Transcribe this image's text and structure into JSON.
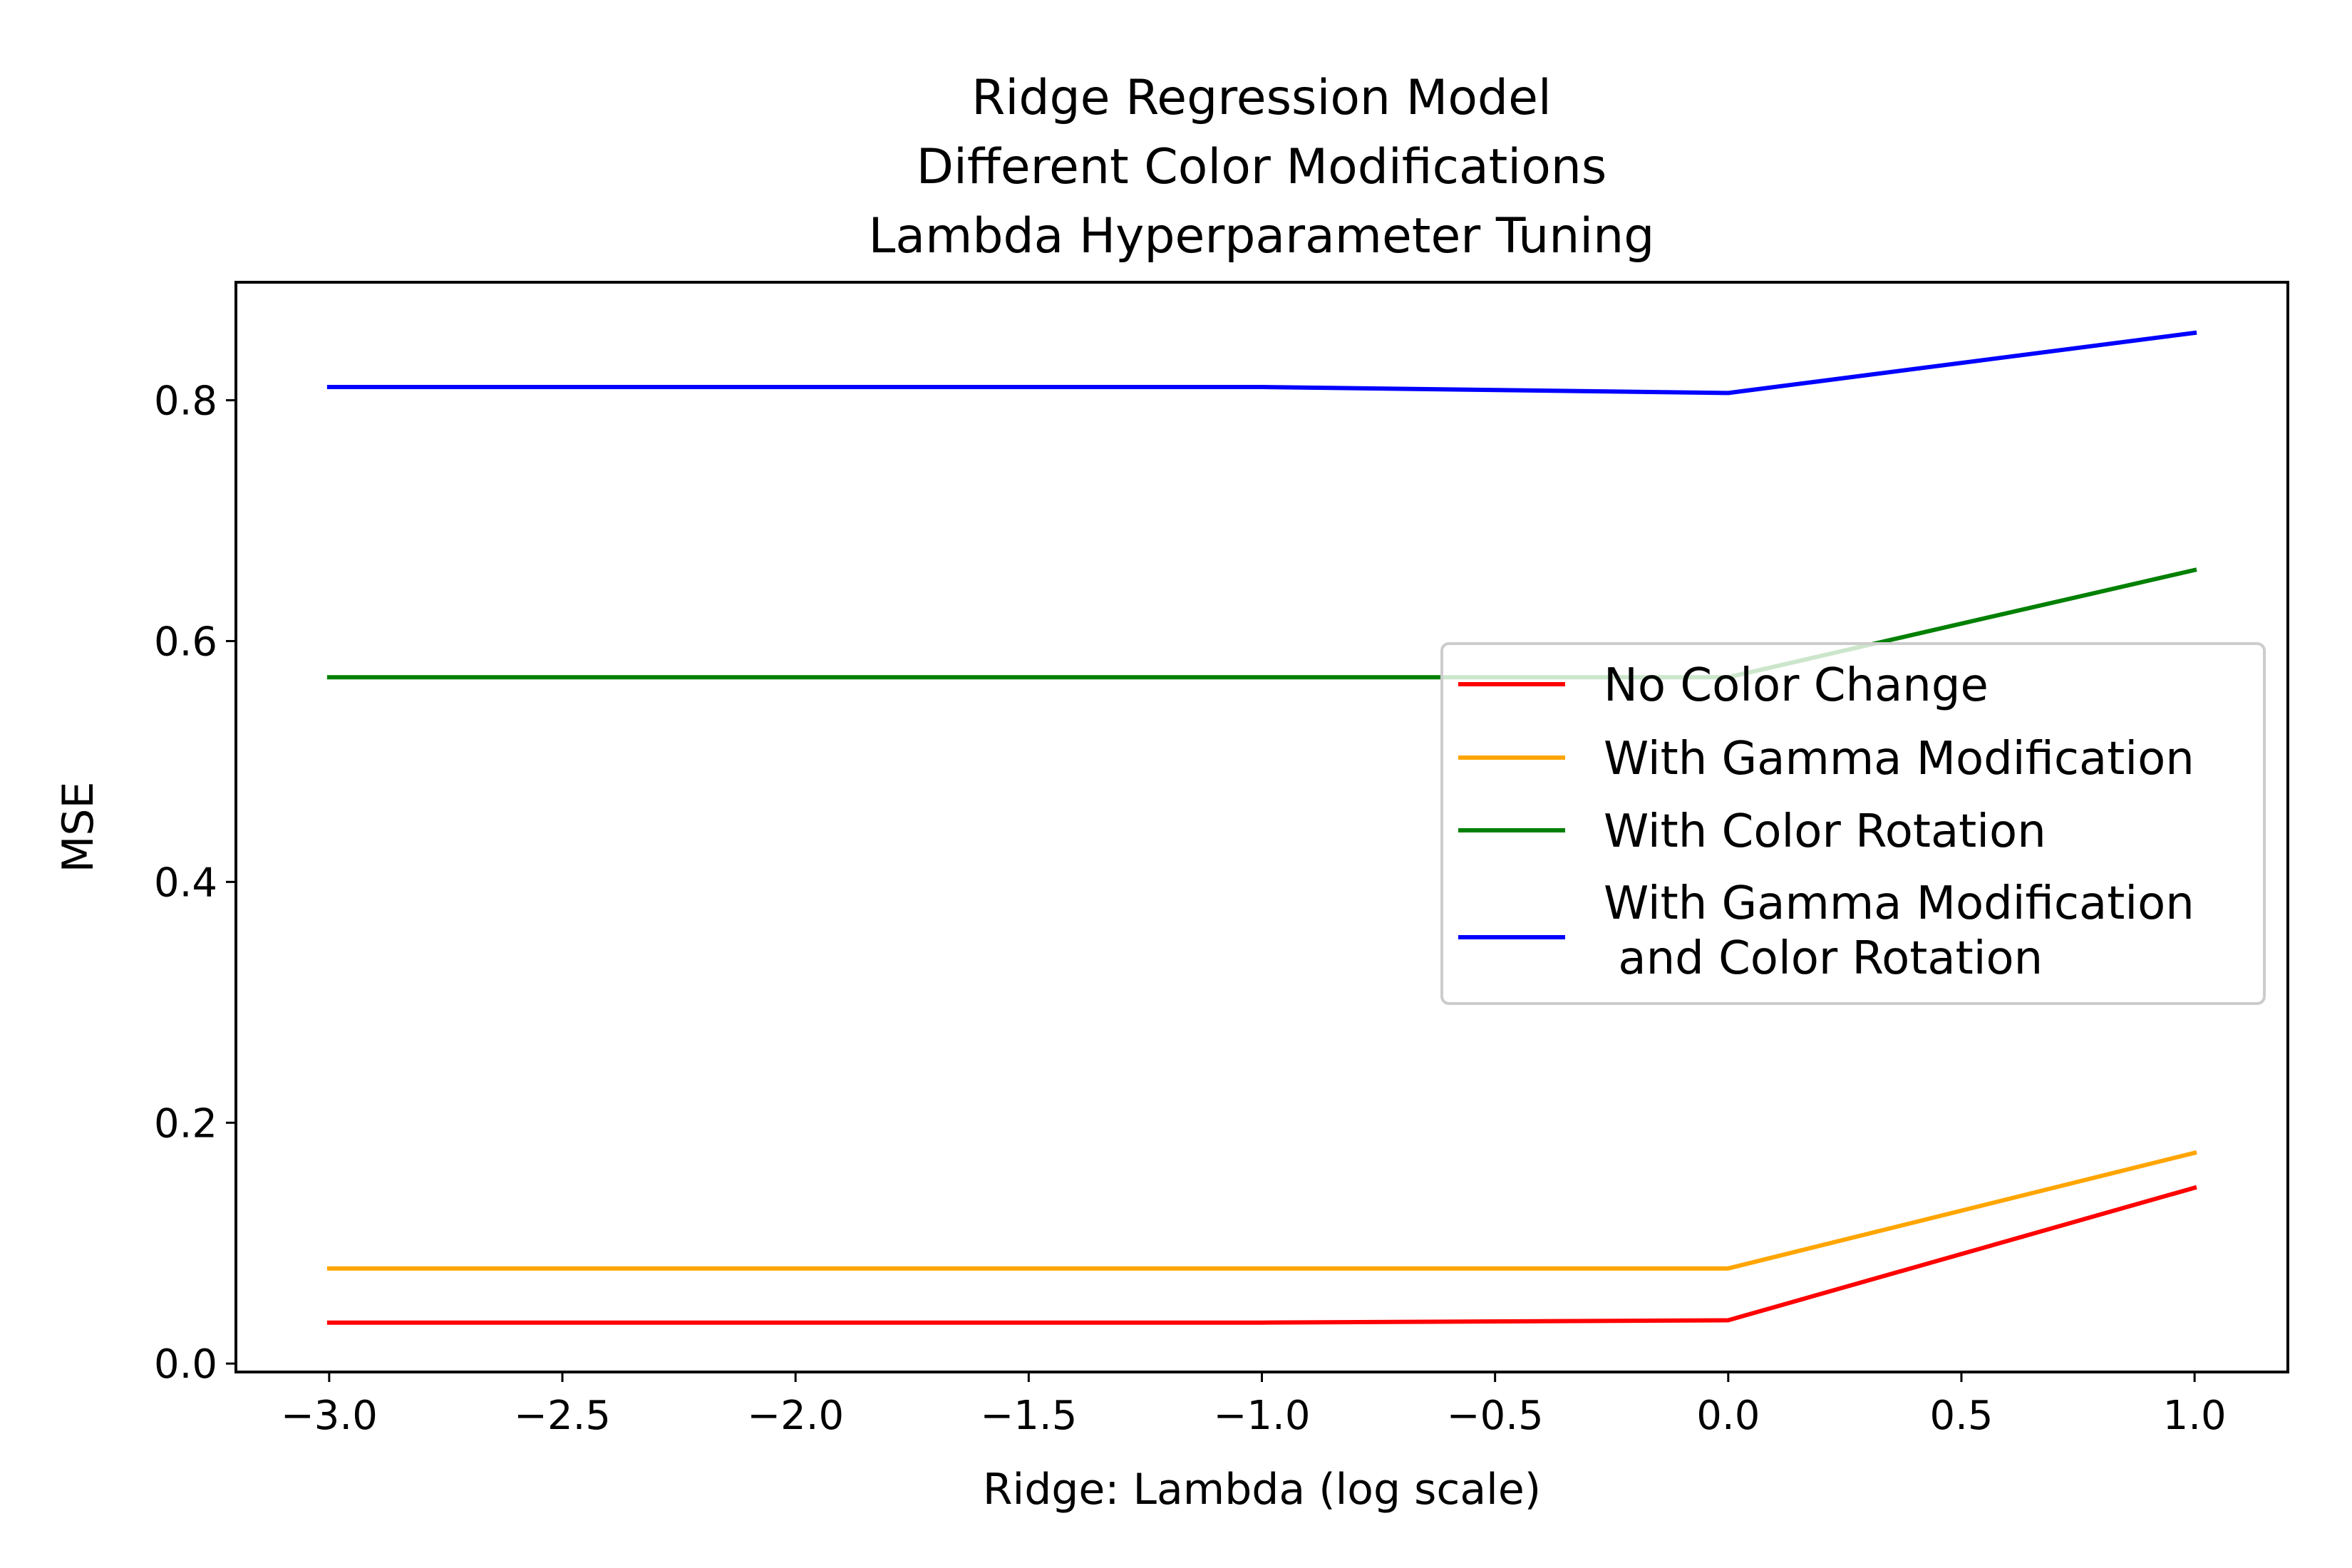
{
  "chart_data": {
    "type": "line",
    "title": [
      "Ridge Regression Model",
      "Different Color Modifications",
      "Lambda Hyperparameter Tuning"
    ],
    "xlabel": "Ridge: Lambda (log scale)",
    "ylabel": "MSE",
    "xlim": [
      -3.2,
      1.2
    ],
    "ylim": [
      -0.007,
      0.898
    ],
    "x_ticks": [
      -3.0,
      -2.5,
      -2.0,
      -1.5,
      -1.0,
      -0.5,
      0.0,
      0.5,
      1.0
    ],
    "x_tick_labels": [
      "−3.0",
      "−2.5",
      "−2.0",
      "−1.5",
      "−1.0",
      "−0.5",
      "0.0",
      "0.5",
      "1.0"
    ],
    "y_ticks": [
      0.0,
      0.2,
      0.4,
      0.6,
      0.8
    ],
    "y_tick_labels": [
      "0.0",
      "0.2",
      "0.4",
      "0.6",
      "0.8"
    ],
    "grid": false,
    "legend_position": "center-right",
    "x": [
      -3,
      -2,
      -1,
      0,
      1
    ],
    "series": [
      {
        "name": "No Color Change",
        "color": "#ff0000",
        "values": [
          0.034,
          0.034,
          0.034,
          0.036,
          0.146
        ]
      },
      {
        "name": "With Gamma Modification",
        "color": "#ffa500",
        "values": [
          0.079,
          0.079,
          0.079,
          0.079,
          0.175
        ]
      },
      {
        "name": "With Color Rotation",
        "color": "#008000",
        "values": [
          0.57,
          0.57,
          0.57,
          0.57,
          0.659
        ]
      },
      {
        "name": "With Gamma Modification\n and Color Rotation",
        "color": "#0000ff",
        "values": [
          0.811,
          0.811,
          0.811,
          0.806,
          0.856
        ]
      }
    ]
  }
}
